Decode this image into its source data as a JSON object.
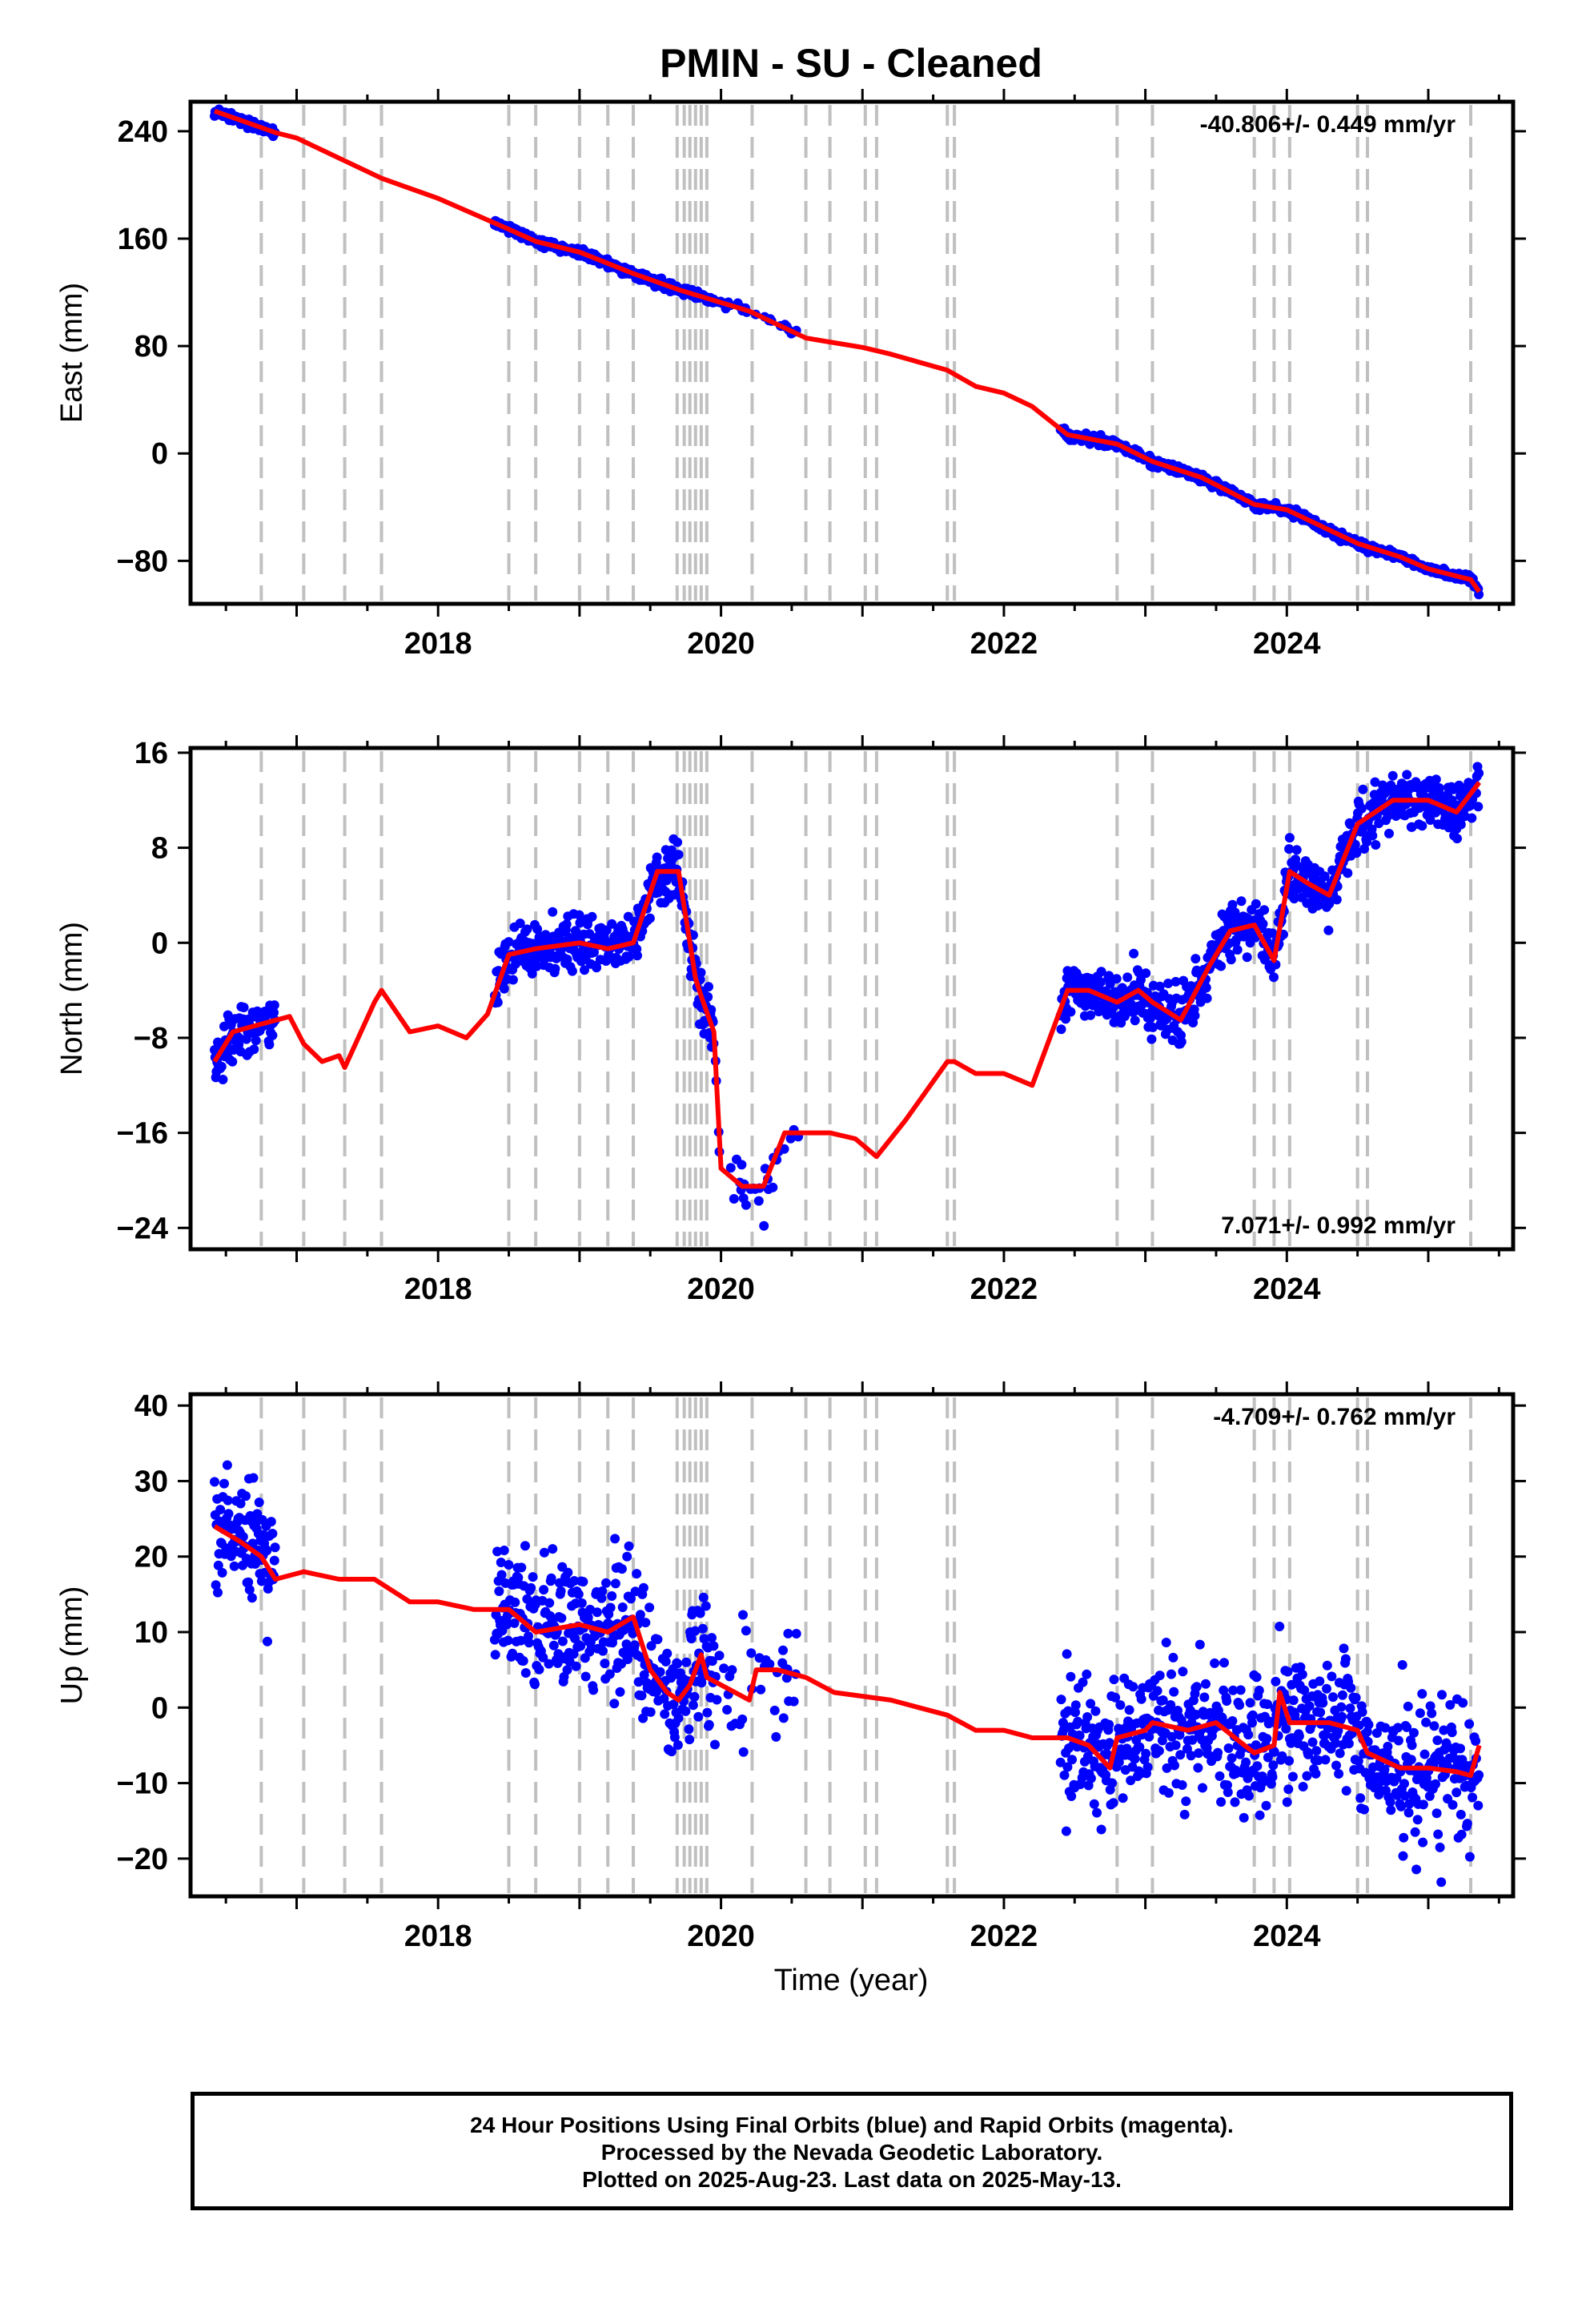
{
  "chart_data": {
    "type": "scatter",
    "title": "PMIN  - SU - Cleaned",
    "xlabel": "Time (year)",
    "xlim": [
      2016.25,
      2025.6
    ],
    "x_ticks": [
      2018,
      2020,
      2022,
      2024
    ],
    "x_tick_labels": [
      "2018",
      "2020",
      "2022",
      "2024"
    ],
    "equipment_change_dates": [
      2016.75,
      2017.05,
      2017.34,
      2017.6,
      2018.5,
      2018.69,
      2019.0,
      2019.2,
      2019.38,
      2019.69,
      2019.74,
      2019.78,
      2019.82,
      2019.86,
      2019.9,
      2020.22,
      2020.6,
      2020.77,
      2021.02,
      2021.1,
      2021.6,
      2021.65,
      2022.8,
      2023.05,
      2023.77,
      2023.91,
      2024.02,
      2024.5,
      2024.57,
      2025.3
    ],
    "data_gaps": [
      [
        2016.85,
        2018.4
      ],
      [
        2020.55,
        2022.4
      ]
    ],
    "panels": [
      {
        "name": "east",
        "ylabel": "East (mm)",
        "ylim": [
          -112,
          262
        ],
        "y_ticks": [
          -80,
          0,
          80,
          160,
          240
        ],
        "y_tick_labels": [
          "−80",
          "0",
          "80",
          "160",
          "240"
        ],
        "rate_label": "-40.806+/- 0.449 mm/yr",
        "rate_label_position": "top-right",
        "scatter_noise_mm": 2.2,
        "model_x": [
          2016.42,
          2016.85,
          2017.0,
          2017.3,
          2017.6,
          2018.0,
          2018.5,
          2018.69,
          2019.0,
          2019.38,
          2019.7,
          2019.95,
          2020.2,
          2020.4,
          2020.6,
          2021.0,
          2021.2,
          2021.6,
          2021.8,
          2022.0,
          2022.2,
          2022.45,
          2022.8,
          2023.05,
          2023.4,
          2023.77,
          2024.0,
          2024.5,
          2024.8,
          2025.0,
          2025.3,
          2025.36
        ],
        "model_y": [
          255,
          239,
          235,
          220,
          205,
          190,
          167,
          158,
          150,
          134,
          122,
          114,
          106,
          96,
          86,
          79,
          74,
          62,
          50,
          45,
          35,
          14,
          7,
          -6,
          -18,
          -38,
          -42,
          -67,
          -77,
          -86,
          -94,
          -103
        ]
      },
      {
        "name": "north",
        "ylabel": "North (mm)",
        "ylim": [
          -25.8,
          16.4
        ],
        "y_ticks": [
          -24,
          -16,
          -8,
          0,
          8,
          16
        ],
        "y_tick_labels": [
          "−24",
          "−16",
          "−8",
          "0",
          "8",
          "16"
        ],
        "rate_label": "7.071+/- 0.992 mm/yr",
        "rate_label_position": "bottom-right",
        "scatter_noise_mm": 1.6,
        "model_x": [
          2016.42,
          2016.55,
          2016.7,
          2016.95,
          2017.05,
          2017.18,
          2017.3,
          2017.34,
          2017.55,
          2017.6,
          2017.8,
          2018.0,
          2018.2,
          2018.35,
          2018.5,
          2018.69,
          2019.0,
          2019.2,
          2019.38,
          2019.55,
          2019.7,
          2019.82,
          2019.86,
          2019.95,
          2020.0,
          2020.15,
          2020.3,
          2020.45,
          2020.6,
          2020.77,
          2020.95,
          2021.1,
          2021.3,
          2021.6,
          2021.65,
          2021.8,
          2022.0,
          2022.2,
          2022.45,
          2022.6,
          2022.8,
          2022.95,
          2023.05,
          2023.25,
          2023.45,
          2023.6,
          2023.77,
          2023.91,
          2024.02,
          2024.15,
          2024.3,
          2024.5,
          2024.75,
          2025.0,
          2025.2,
          2025.36
        ],
        "model_y": [
          -10,
          -7.5,
          -7,
          -6.2,
          -8.5,
          -10,
          -9.5,
          -10.5,
          -5,
          -4,
          -7.5,
          -7,
          -8,
          -6,
          -1,
          -0.5,
          0,
          -0.5,
          0,
          6,
          6,
          -3,
          -4.5,
          -7.5,
          -19,
          -20.5,
          -20.5,
          -16,
          -16,
          -16,
          -16.5,
          -18,
          -15,
          -10,
          -10,
          -11,
          -11,
          -12,
          -4,
          -4,
          -5,
          -4,
          -5,
          -6.5,
          -2,
          1,
          1.5,
          -1.5,
          6,
          5,
          4,
          10,
          12,
          12,
          11,
          13.5
        ]
      },
      {
        "name": "up",
        "ylabel": "Up (mm)",
        "ylim": [
          -25,
          41.5
        ],
        "y_ticks": [
          -20,
          -10,
          0,
          10,
          20,
          30,
          40
        ],
        "y_tick_labels": [
          "−20",
          "−10",
          "0",
          "10",
          "20",
          "30",
          "40"
        ],
        "rate_label": "-4.709+/- 0.762 mm/yr",
        "rate_label_position": "top-right",
        "scatter_noise_mm": 6.0,
        "model_x": [
          2016.42,
          2016.6,
          2016.75,
          2016.85,
          2017.05,
          2017.3,
          2017.55,
          2017.8,
          2018.0,
          2018.25,
          2018.5,
          2018.69,
          2019.0,
          2019.2,
          2019.38,
          2019.5,
          2019.62,
          2019.7,
          2019.78,
          2019.86,
          2019.9,
          2020.0,
          2020.2,
          2020.25,
          2020.4,
          2020.6,
          2020.8,
          2021.0,
          2021.2,
          2021.4,
          2021.6,
          2021.8,
          2022.0,
          2022.2,
          2022.45,
          2022.6,
          2022.75,
          2022.8,
          2023.0,
          2023.05,
          2023.3,
          2023.5,
          2023.7,
          2023.77,
          2023.91,
          2023.95,
          2024.02,
          2024.3,
          2024.5,
          2024.57,
          2024.8,
          2025.0,
          2025.2,
          2025.3,
          2025.36
        ],
        "model_y": [
          24,
          22,
          20,
          17,
          18,
          17,
          17,
          14,
          14,
          13,
          13,
          10,
          11,
          10,
          12,
          5,
          2,
          1,
          3,
          7,
          4,
          3,
          1,
          5,
          5,
          4,
          2,
          1.5,
          1,
          0,
          -1,
          -3,
          -3,
          -4,
          -4,
          -5,
          -8,
          -4,
          -3,
          -2,
          -3,
          -2,
          -5,
          -6,
          -5,
          2,
          -2,
          -2,
          -3,
          -6,
          -8,
          -8,
          -8.5,
          -9,
          -5
        ]
      }
    ],
    "footer_lines": [
      "24 Hour Positions Using Final Orbits (blue) and Rapid Orbits (magenta).",
      "Processed by the Nevada Geodetic Laboratory.",
      "Plotted on 2025-Aug-23. Last data on 2025-May-13."
    ],
    "colors": {
      "data_points": "#0000ff",
      "model_line": "#ff0000",
      "equipment_lines": "#c0c0c0",
      "frame": "#000000"
    }
  }
}
